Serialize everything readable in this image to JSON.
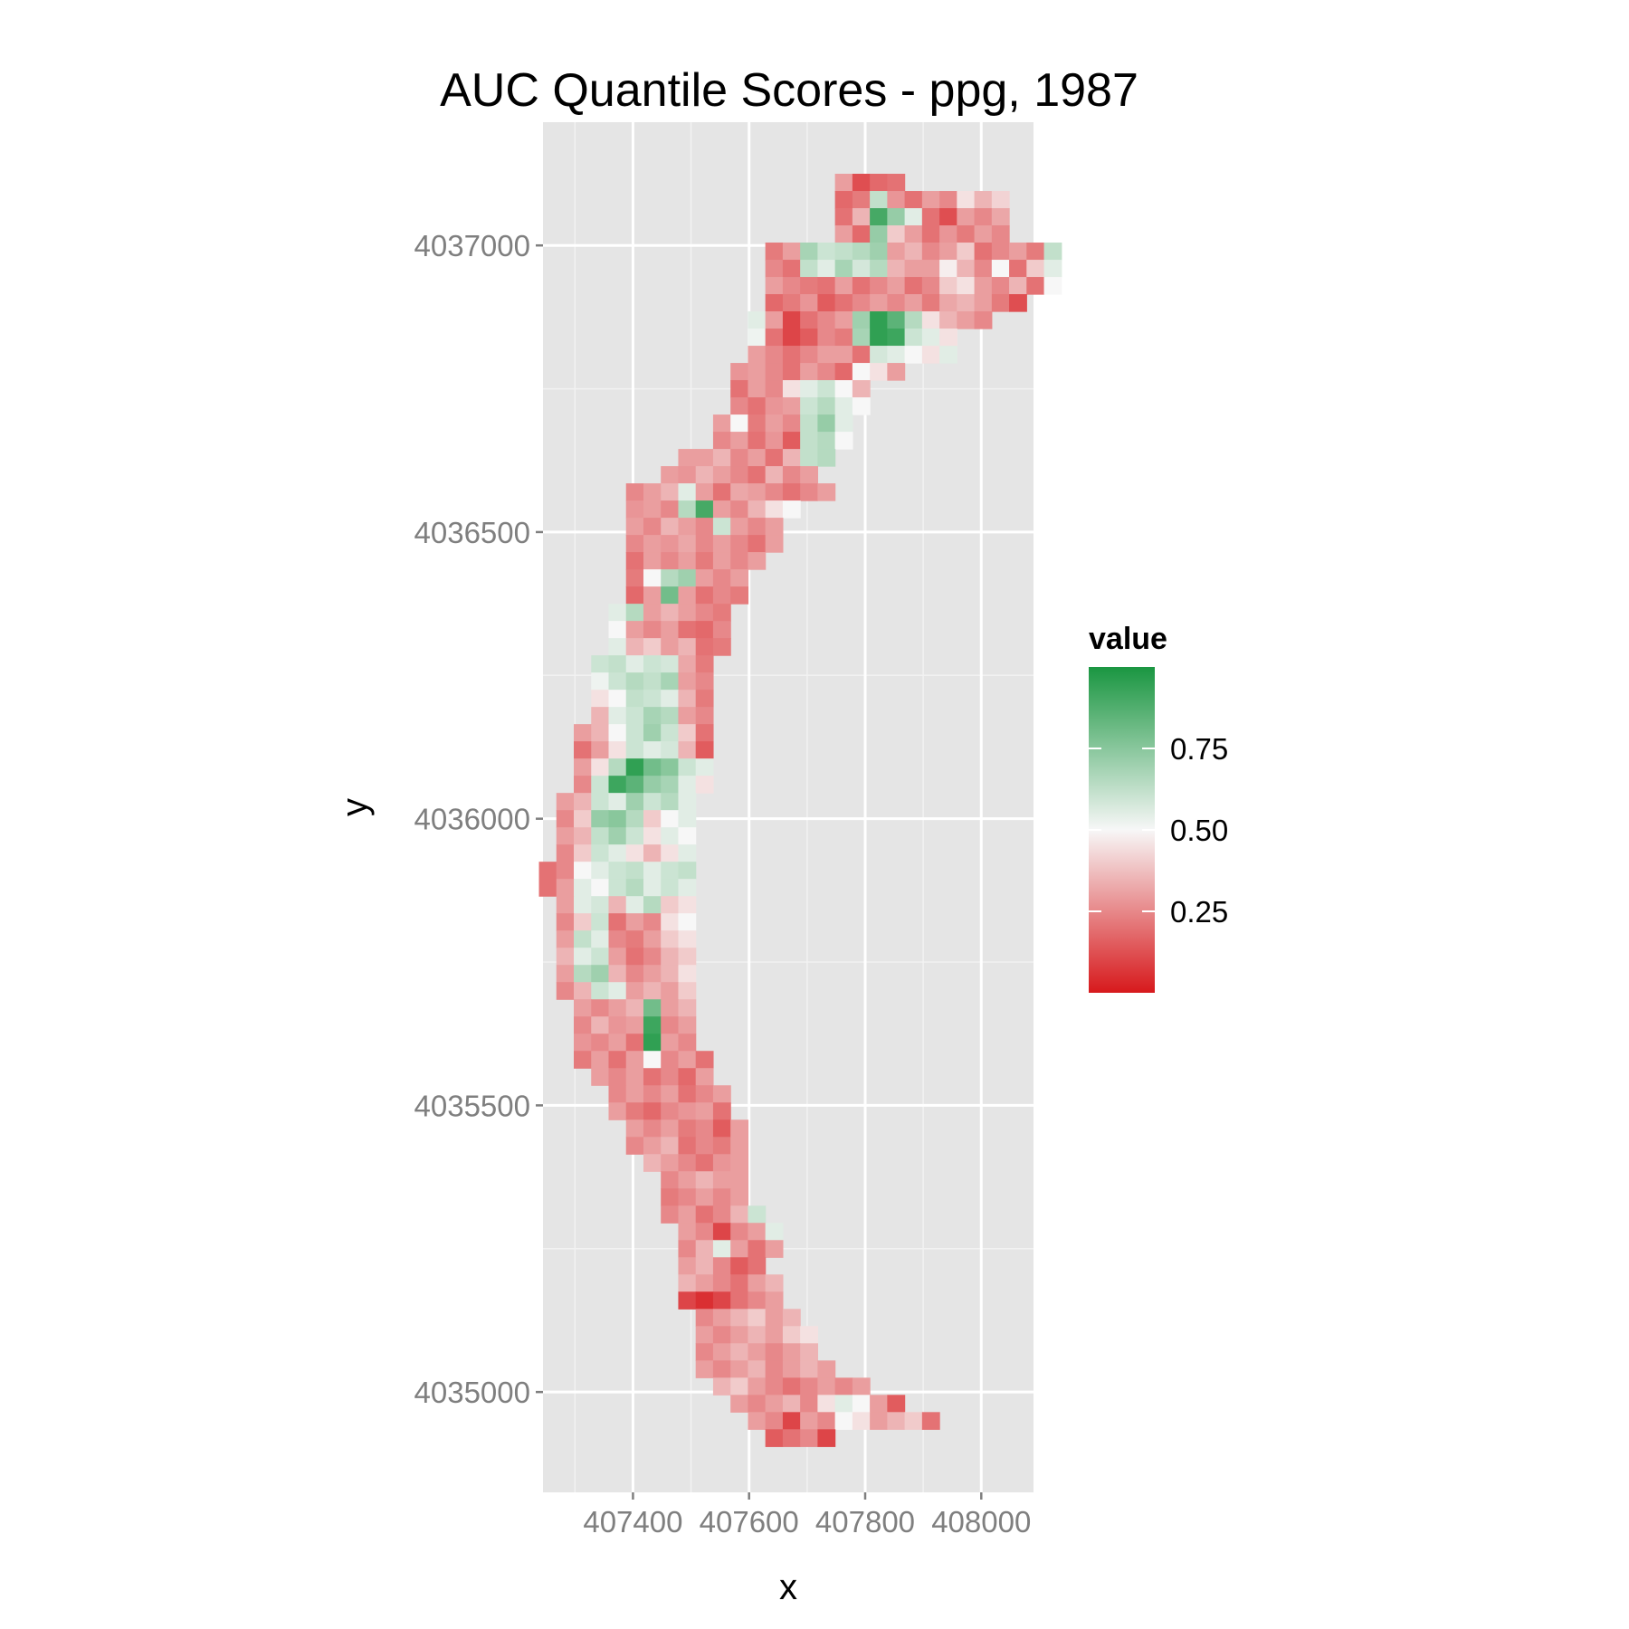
{
  "chart_data": {
    "type": "heatmap",
    "title": "AUC Quantile Scores - ppg, 1987",
    "xlabel": "x",
    "ylabel": "y",
    "xlim": [
      407245,
      408090
    ],
    "ylim": [
      4034825,
      4037215
    ],
    "x_ticks": [
      407400,
      407600,
      407800,
      408000
    ],
    "x_tick_labels": [
      "407400",
      "407600",
      "407800",
      "408000"
    ],
    "y_ticks": [
      4035000,
      4035500,
      4036000,
      4036500,
      4037000
    ],
    "y_tick_labels": [
      "4035000",
      "4035500",
      "4036000",
      "4036500",
      "4037000"
    ],
    "grid": true,
    "legend": {
      "title": "value",
      "position": "right",
      "breaks": [
        0.25,
        0.5,
        0.75
      ],
      "break_labels": [
        "0.25",
        "0.50",
        "0.75"
      ],
      "range": [
        0,
        1
      ],
      "low_color": "#d7191c",
      "mid_color": "#f7f7f7",
      "high_color": "#1a9641"
    },
    "cell_size": 30,
    "rows": [
      {
        "y": 4037110,
        "x0": 407763,
        "values": [
          0.3,
          0.12,
          0.18,
          0.2
        ]
      },
      {
        "y": 4037080,
        "x0": 407763,
        "values": [
          0.18,
          0.22,
          0.62,
          0.28,
          0.2,
          0.3,
          0.25,
          0.45,
          0.35,
          0.42
        ]
      },
      {
        "y": 4037050,
        "x0": 407763,
        "values": [
          0.2,
          0.35,
          0.9,
          0.72,
          0.55,
          0.2,
          0.12,
          0.3,
          0.25,
          0.32
        ]
      },
      {
        "y": 4037020,
        "x0": 407763,
        "values": [
          0.3,
          0.18,
          0.72,
          0.4,
          0.3,
          0.2,
          0.28,
          0.22,
          0.3,
          0.25
        ]
      },
      {
        "y": 4036990,
        "x0": 407643,
        "values": [
          0.22,
          0.3,
          0.68,
          0.6,
          0.62,
          0.65,
          0.7,
          0.3,
          0.35,
          0.25,
          0.3,
          0.4,
          0.2,
          0.25,
          0.3,
          0.22,
          0.62
        ]
      },
      {
        "y": 4036960,
        "x0": 407643,
        "values": [
          0.25,
          0.2,
          0.62,
          0.55,
          0.68,
          0.58,
          0.65,
          0.35,
          0.3,
          0.3,
          0.48,
          0.35,
          0.25,
          0.5,
          0.2,
          0.4,
          0.55
        ]
      },
      {
        "y": 4036930,
        "x0": 407643,
        "values": [
          0.3,
          0.25,
          0.22,
          0.2,
          0.3,
          0.2,
          0.25,
          0.3,
          0.2,
          0.25,
          0.4,
          0.45,
          0.3,
          0.25,
          0.35,
          0.2,
          0.5
        ]
      },
      {
        "y": 4036900,
        "x0": 407643,
        "values": [
          0.18,
          0.22,
          0.28,
          0.15,
          0.2,
          0.25,
          0.3,
          0.25,
          0.3,
          0.22,
          0.32,
          0.35,
          0.3,
          0.22,
          0.12
        ]
      },
      {
        "y": 4036870,
        "x0": 407613,
        "values": [
          0.55,
          0.3,
          0.1,
          0.2,
          0.25,
          0.3,
          0.7,
          0.95,
          0.85,
          0.65,
          0.45,
          0.35,
          0.3,
          0.25
        ]
      },
      {
        "y": 4036840,
        "x0": 407613,
        "values": [
          0.52,
          0.2,
          0.1,
          0.15,
          0.25,
          0.22,
          0.68,
          0.95,
          0.92,
          0.6,
          0.55,
          0.45
        ]
      },
      {
        "y": 4036810,
        "x0": 407613,
        "values": [
          0.3,
          0.25,
          0.2,
          0.25,
          0.3,
          0.3,
          0.2,
          0.58,
          0.55,
          0.5,
          0.45,
          0.55
        ]
      },
      {
        "y": 4036780,
        "x0": 407583,
        "values": [
          0.28,
          0.3,
          0.25,
          0.2,
          0.3,
          0.25,
          0.18,
          0.5,
          0.45,
          0.3
        ]
      },
      {
        "y": 4036750,
        "x0": 407583,
        "values": [
          0.2,
          0.3,
          0.25,
          0.45,
          0.55,
          0.6,
          0.5,
          0.35
        ]
      },
      {
        "y": 4036720,
        "x0": 407583,
        "values": [
          0.25,
          0.2,
          0.28,
          0.3,
          0.6,
          0.65,
          0.55,
          0.5
        ]
      },
      {
        "y": 4036690,
        "x0": 407553,
        "values": [
          0.3,
          0.5,
          0.22,
          0.3,
          0.25,
          0.62,
          0.72,
          0.55
        ]
      },
      {
        "y": 4036660,
        "x0": 407553,
        "values": [
          0.25,
          0.3,
          0.2,
          0.28,
          0.15,
          0.62,
          0.65,
          0.5
        ]
      },
      {
        "y": 4036630,
        "x0": 407493,
        "values": [
          0.3,
          0.3,
          0.35,
          0.25,
          0.3,
          0.2,
          0.35,
          0.62,
          0.65
        ]
      },
      {
        "y": 4036600,
        "x0": 407463,
        "values": [
          0.3,
          0.28,
          0.35,
          0.3,
          0.25,
          0.2,
          0.35,
          0.25,
          0.3
        ]
      },
      {
        "y": 4036570,
        "x0": 407403,
        "values": [
          0.25,
          0.3,
          0.35,
          0.55,
          0.3,
          0.2,
          0.32,
          0.3,
          0.25,
          0.2,
          0.25,
          0.3
        ]
      },
      {
        "y": 4036540,
        "x0": 407403,
        "values": [
          0.28,
          0.3,
          0.25,
          0.65,
          0.9,
          0.3,
          0.25,
          0.35,
          0.45,
          0.5
        ]
      },
      {
        "y": 4036510,
        "x0": 407403,
        "values": [
          0.3,
          0.25,
          0.35,
          0.3,
          0.25,
          0.6,
          0.3,
          0.25,
          0.3
        ]
      },
      {
        "y": 4036480,
        "x0": 407403,
        "values": [
          0.25,
          0.3,
          0.28,
          0.32,
          0.25,
          0.3,
          0.25,
          0.2,
          0.3
        ]
      },
      {
        "y": 4036450,
        "x0": 407403,
        "values": [
          0.2,
          0.3,
          0.25,
          0.3,
          0.22,
          0.3,
          0.25,
          0.3
        ]
      },
      {
        "y": 4036420,
        "x0": 407403,
        "values": [
          0.22,
          0.5,
          0.65,
          0.7,
          0.3,
          0.25,
          0.3
        ]
      },
      {
        "y": 4036390,
        "x0": 407403,
        "values": [
          0.18,
          0.3,
          0.8,
          0.3,
          0.2,
          0.25,
          0.22
        ]
      },
      {
        "y": 4036360,
        "x0": 407373,
        "values": [
          0.55,
          0.65,
          0.3,
          0.35,
          0.3,
          0.25,
          0.22
        ]
      },
      {
        "y": 4036330,
        "x0": 407373,
        "values": [
          0.5,
          0.3,
          0.25,
          0.3,
          0.2,
          0.18,
          0.25
        ]
      },
      {
        "y": 4036300,
        "x0": 407373,
        "values": [
          0.55,
          0.35,
          0.4,
          0.3,
          0.35,
          0.2,
          0.22
        ]
      },
      {
        "y": 4036270,
        "x0": 407343,
        "values": [
          0.6,
          0.62,
          0.55,
          0.6,
          0.58,
          0.32,
          0.22
        ]
      },
      {
        "y": 4036240,
        "x0": 407343,
        "values": [
          0.52,
          0.6,
          0.65,
          0.62,
          0.68,
          0.3,
          0.25
        ]
      },
      {
        "y": 4036210,
        "x0": 407343,
        "values": [
          0.45,
          0.5,
          0.62,
          0.6,
          0.55,
          0.35,
          0.22
        ]
      },
      {
        "y": 4036180,
        "x0": 407343,
        "values": [
          0.35,
          0.55,
          0.6,
          0.68,
          0.65,
          0.3,
          0.25
        ]
      },
      {
        "y": 4036150,
        "x0": 407313,
        "values": [
          0.3,
          0.35,
          0.5,
          0.6,
          0.7,
          0.6,
          0.4,
          0.2
        ]
      },
      {
        "y": 4036120,
        "x0": 407313,
        "values": [
          0.2,
          0.3,
          0.45,
          0.6,
          0.55,
          0.58,
          0.35,
          0.15
        ]
      },
      {
        "y": 4036090,
        "x0": 407313,
        "values": [
          0.3,
          0.45,
          0.65,
          0.95,
          0.8,
          0.75,
          0.6,
          0.55
        ]
      },
      {
        "y": 4036060,
        "x0": 407313,
        "values": [
          0.25,
          0.6,
          0.92,
          0.85,
          0.72,
          0.68,
          0.55,
          0.45
        ]
      },
      {
        "y": 4036030,
        "x0": 407283,
        "values": [
          0.3,
          0.35,
          0.6,
          0.55,
          0.7,
          0.6,
          0.65,
          0.55
        ]
      },
      {
        "y": 4036000,
        "x0": 407283,
        "values": [
          0.25,
          0.4,
          0.72,
          0.75,
          0.65,
          0.4,
          0.5,
          0.55
        ]
      },
      {
        "y": 4035970,
        "x0": 407283,
        "values": [
          0.3,
          0.35,
          0.62,
          0.7,
          0.6,
          0.45,
          0.55,
          0.5
        ]
      },
      {
        "y": 4035940,
        "x0": 407283,
        "values": [
          0.25,
          0.4,
          0.6,
          0.55,
          0.45,
          0.35,
          0.45,
          0.55
        ]
      },
      {
        "y": 4035910,
        "x0": 407253,
        "values": [
          0.2,
          0.25,
          0.5,
          0.55,
          0.6,
          0.62,
          0.55,
          0.6,
          0.62
        ]
      },
      {
        "y": 4035880,
        "x0": 407253,
        "values": [
          0.2,
          0.3,
          0.55,
          0.5,
          0.6,
          0.65,
          0.55,
          0.6,
          0.55
        ]
      },
      {
        "y": 4035850,
        "x0": 407283,
        "values": [
          0.3,
          0.55,
          0.58,
          0.35,
          0.55,
          0.65,
          0.4,
          0.45
        ]
      },
      {
        "y": 4035820,
        "x0": 407283,
        "values": [
          0.25,
          0.4,
          0.6,
          0.2,
          0.3,
          0.25,
          0.45,
          0.5
        ]
      },
      {
        "y": 4035790,
        "x0": 407283,
        "values": [
          0.3,
          0.62,
          0.55,
          0.25,
          0.22,
          0.3,
          0.4,
          0.45
        ]
      },
      {
        "y": 4035760,
        "x0": 407283,
        "values": [
          0.35,
          0.55,
          0.6,
          0.3,
          0.2,
          0.25,
          0.35,
          0.4
        ]
      },
      {
        "y": 4035730,
        "x0": 407283,
        "values": [
          0.3,
          0.65,
          0.7,
          0.35,
          0.25,
          0.3,
          0.35,
          0.45
        ]
      },
      {
        "y": 4035700,
        "x0": 407283,
        "values": [
          0.25,
          0.35,
          0.6,
          0.55,
          0.3,
          0.35,
          0.3,
          0.4
        ]
      },
      {
        "y": 4035670,
        "x0": 407313,
        "values": [
          0.3,
          0.25,
          0.3,
          0.35,
          0.8,
          0.3,
          0.35
        ]
      },
      {
        "y": 4035640,
        "x0": 407313,
        "values": [
          0.25,
          0.35,
          0.28,
          0.3,
          0.92,
          0.25,
          0.3
        ]
      },
      {
        "y": 4035610,
        "x0": 407313,
        "values": [
          0.28,
          0.25,
          0.3,
          0.2,
          0.95,
          0.3,
          0.25
        ]
      },
      {
        "y": 4035580,
        "x0": 407313,
        "values": [
          0.22,
          0.3,
          0.2,
          0.3,
          0.5,
          0.25,
          0.3,
          0.2
        ]
      },
      {
        "y": 4035550,
        "x0": 407343,
        "values": [
          0.3,
          0.25,
          0.3,
          0.2,
          0.25,
          0.18,
          0.3
        ]
      },
      {
        "y": 4035520,
        "x0": 407373,
        "values": [
          0.25,
          0.3,
          0.25,
          0.3,
          0.2,
          0.25,
          0.3
        ]
      },
      {
        "y": 4035490,
        "x0": 407373,
        "values": [
          0.3,
          0.22,
          0.18,
          0.25,
          0.28,
          0.3,
          0.2
        ]
      },
      {
        "y": 4035460,
        "x0": 407403,
        "values": [
          0.3,
          0.25,
          0.3,
          0.22,
          0.25,
          0.15,
          0.3
        ]
      },
      {
        "y": 4035430,
        "x0": 407403,
        "values": [
          0.25,
          0.3,
          0.35,
          0.2,
          0.25,
          0.22,
          0.3
        ]
      },
      {
        "y": 4035400,
        "x0": 407433,
        "values": [
          0.35,
          0.3,
          0.25,
          0.2,
          0.28,
          0.3
        ]
      },
      {
        "y": 4035370,
        "x0": 407463,
        "values": [
          0.25,
          0.3,
          0.35,
          0.3,
          0.3
        ]
      },
      {
        "y": 4035340,
        "x0": 407463,
        "values": [
          0.22,
          0.25,
          0.3,
          0.25,
          0.3
        ]
      },
      {
        "y": 4035310,
        "x0": 407463,
        "values": [
          0.25,
          0.3,
          0.2,
          0.25,
          0.35,
          0.6
        ]
      },
      {
        "y": 4035280,
        "x0": 407493,
        "values": [
          0.3,
          0.25,
          0.1,
          0.25,
          0.3,
          0.55
        ]
      },
      {
        "y": 4035250,
        "x0": 407493,
        "values": [
          0.25,
          0.35,
          0.55,
          0.3,
          0.2,
          0.3
        ]
      },
      {
        "y": 4035220,
        "x0": 407493,
        "values": [
          0.3,
          0.35,
          0.25,
          0.15,
          0.2
        ]
      },
      {
        "y": 4035190,
        "x0": 407493,
        "values": [
          0.35,
          0.3,
          0.25,
          0.2,
          0.3,
          0.35
        ]
      },
      {
        "y": 4035160,
        "x0": 407493,
        "values": [
          0.1,
          0.05,
          0.1,
          0.2,
          0.25,
          0.3
        ]
      },
      {
        "y": 4035130,
        "x0": 407523,
        "values": [
          0.25,
          0.3,
          0.35,
          0.4,
          0.3,
          0.35
        ]
      },
      {
        "y": 4035100,
        "x0": 407523,
        "values": [
          0.3,
          0.25,
          0.3,
          0.35,
          0.3,
          0.4,
          0.45
        ]
      },
      {
        "y": 4035070,
        "x0": 407523,
        "values": [
          0.25,
          0.3,
          0.35,
          0.3,
          0.25,
          0.3,
          0.35
        ]
      },
      {
        "y": 4035040,
        "x0": 407523,
        "values": [
          0.3,
          0.25,
          0.3,
          0.35,
          0.25,
          0.3,
          0.35,
          0.3
        ]
      },
      {
        "y": 4035010,
        "x0": 407553,
        "values": [
          0.35,
          0.4,
          0.3,
          0.25,
          0.2,
          0.25,
          0.3,
          0.25,
          0.3
        ]
      },
      {
        "y": 4034980,
        "x0": 407583,
        "values": [
          0.3,
          0.25,
          0.3,
          0.35,
          0.25,
          0.45,
          0.55,
          0.5,
          0.3,
          0.15
        ]
      },
      {
        "y": 4034950,
        "x0": 407613,
        "values": [
          0.3,
          0.25,
          0.1,
          0.3,
          0.25,
          0.5,
          0.45,
          0.3,
          0.35,
          0.4,
          0.2
        ]
      },
      {
        "y": 4034920,
        "x0": 407643,
        "values": [
          0.15,
          0.2,
          0.25,
          0.1
        ]
      }
    ]
  }
}
